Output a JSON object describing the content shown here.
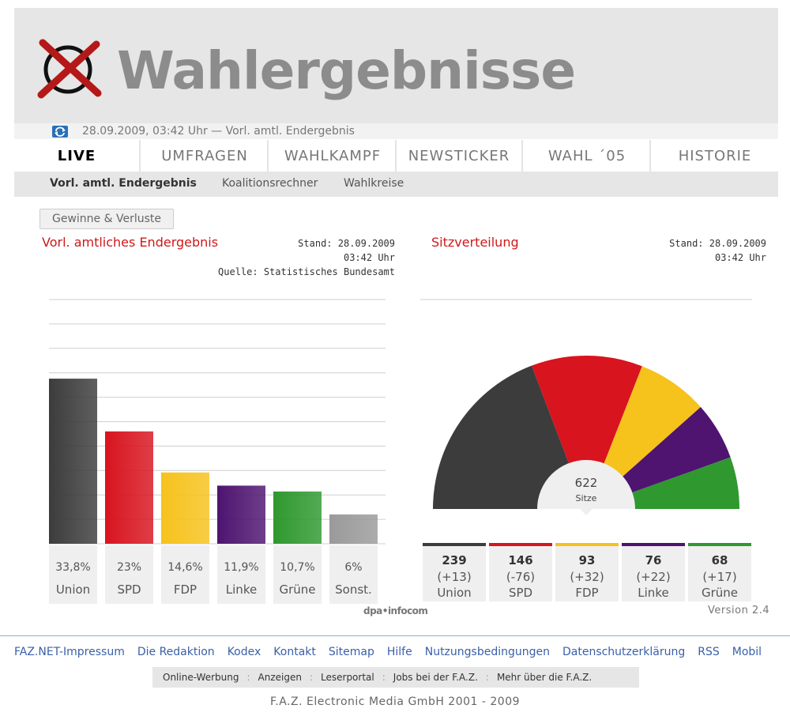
{
  "header": {
    "title": "Wahlergebnisse",
    "status": "28.09.2009, 03:42 Uhr — Vorl. amtl. Endergebnis"
  },
  "tabs": [
    {
      "label": "LIVE"
    },
    {
      "label": "UMFRAGEN"
    },
    {
      "label": "WAHLKAMPF"
    },
    {
      "label": "NEWSTICKER"
    },
    {
      "label": "WAHL ´05"
    },
    {
      "label": "HISTORIE"
    }
  ],
  "subnav": [
    {
      "label": "Vorl. amtl. Endergebnis"
    },
    {
      "label": "Koalitionsrechner"
    },
    {
      "label": "Wahlkreise"
    }
  ],
  "content": {
    "toggle_button": "Gewinne & Verluste",
    "left": {
      "title": "Vorl. amtliches Endergebnis",
      "stand": "Stand: 28.09.2009",
      "time": "03:42 Uhr",
      "source": "Quelle: Statistisches Bundesamt"
    },
    "right": {
      "title": "Sitzverteilung",
      "stand": "Stand: 28.09.2009",
      "time": "03:42 Uhr"
    },
    "credit": "dpa•infocom",
    "version": "Version 2.4"
  },
  "chart_data": [
    {
      "type": "bar",
      "title": "Vorl. amtliches Endergebnis",
      "categories": [
        "Union",
        "SPD",
        "FDP",
        "Linke",
        "Grüne",
        "Sonst."
      ],
      "values": [
        33.8,
        23.0,
        14.6,
        11.9,
        10.7,
        6.0
      ],
      "value_labels": [
        "33,8%",
        "23%",
        "14,6%",
        "11,9%",
        "10,7%",
        "6%"
      ],
      "colors": [
        "#3c3c3c",
        "#d8141f",
        "#f6c21c",
        "#4e1470",
        "#2f982f",
        "#9a9a9a"
      ],
      "ylim": [
        0,
        50
      ],
      "grid": true,
      "ylabel": "",
      "xlabel": ""
    },
    {
      "type": "pie",
      "title": "Sitzverteilung",
      "total_seats": "622",
      "total_label": "Sitze",
      "categories": [
        "Union",
        "SPD",
        "FDP",
        "Linke",
        "Grüne"
      ],
      "values": [
        239,
        146,
        93,
        76,
        68
      ],
      "change_labels": [
        "(+13)",
        "(-76)",
        "(+32)",
        "(+22)",
        "(+17)"
      ],
      "colors": [
        "#3c3c3c",
        "#d8141f",
        "#f6c21c",
        "#4e1470",
        "#2f982f"
      ]
    }
  ],
  "footer": {
    "links": [
      "FAZ.NET-Impressum",
      "Die Redaktion",
      "Kodex",
      "Kontakt",
      "Sitemap",
      "Hilfe",
      "Nutzungsbedingungen",
      "Datenschutzerklärung",
      "RSS",
      "Mobil"
    ],
    "bar": [
      "Online-Werbung",
      "Anzeigen",
      "Leserportal",
      "Jobs bei der F.A.Z.",
      "Mehr über die F.A.Z."
    ],
    "copyright": "F.A.Z. Electronic Media GmbH 2001 - 2009"
  }
}
